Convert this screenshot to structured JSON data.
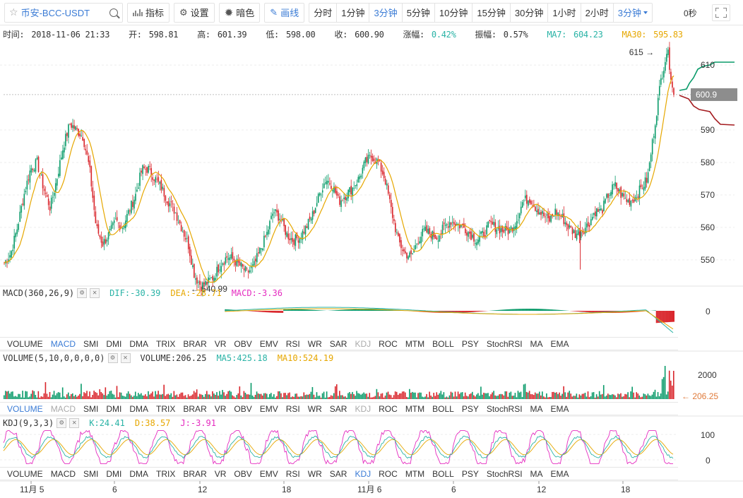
{
  "toolbar": {
    "symbol": "币安-BCC-USDT",
    "indicators_label": "指标",
    "settings_label": "设置",
    "dark_label": "暗色",
    "draw_label": "画线",
    "periods": [
      "分时",
      "1分钟",
      "3分钟",
      "5分钟",
      "10分钟",
      "15分钟",
      "30分钟",
      "1小时",
      "2小时"
    ],
    "active_period": "3分钟",
    "dropdown_label": "3分钟",
    "countdown": "0秒"
  },
  "info": {
    "time_label": "时间:",
    "time": "2018-11-06 21:33",
    "open_label": "开:",
    "open": "598.81",
    "high_label": "高:",
    "high": "601.39",
    "low_label": "低:",
    "low": "598.00",
    "close_label": "收:",
    "close": "600.90",
    "change_label": "涨幅:",
    "change": "0.42%",
    "amp_label": "振幅:",
    "amp": "0.57%",
    "ma7_label": "MA7:",
    "ma7": "604.23",
    "ma30_label": "MA30:",
    "ma30": "595.83"
  },
  "price_axis": [
    "610",
    "600.9",
    "590",
    "580",
    "570",
    "560",
    "550"
  ],
  "high_marker": "615",
  "low_marker": "540.99",
  "current_price": "600.9",
  "macd": {
    "title": "MACD(360,26,9)",
    "dif_label": "DIF:",
    "dif": "-30.39",
    "dea_label": "DEA:",
    "dea": "-28.71",
    "macd_label": "MACD:",
    "macd": "-3.36",
    "zero": "0"
  },
  "volume": {
    "title": "VOLUME(5,10,0,0,0,0)",
    "vol_label": "VOLUME:",
    "vol": "206.25",
    "ma5_label": "MA5:",
    "ma5": "425.18",
    "ma10_label": "MA10:",
    "ma10": "524.19",
    "axis": "2000",
    "current": "206.25"
  },
  "kdj": {
    "title": "KDJ(9,3,3)",
    "k_label": "K:",
    "k": "24.41",
    "d_label": "D:",
    "d": "38.57",
    "j_label": "J:",
    "j": "-3.91",
    "axis_top": "100",
    "axis_bottom": "0"
  },
  "indicator_tabs": [
    "VOLUME",
    "MACD",
    "SMI",
    "DMI",
    "DMA",
    "TRIX",
    "BRAR",
    "VR",
    "OBV",
    "EMV",
    "RSI",
    "WR",
    "SAR",
    "KDJ",
    "ROC",
    "MTM",
    "BOLL",
    "PSY",
    "StochRSI",
    "MA",
    "EMA"
  ],
  "time_axis": [
    "11月 5",
    "6",
    "12",
    "18",
    "11月 6",
    "6",
    "12",
    "18"
  ],
  "colors": {
    "up": "#0a9b6a",
    "down": "#d9262c",
    "ma7": "#2ab3a6",
    "ma30": "#e6a700",
    "accent": "#3a7bd5"
  },
  "chart_data": {
    "type": "candlestick",
    "close_path": [
      549,
      552,
      560,
      570,
      578,
      580,
      572,
      566,
      575,
      585,
      592,
      590,
      588,
      578,
      560,
      555,
      558,
      562,
      560,
      565,
      570,
      578,
      578,
      575,
      572,
      568,
      565,
      560,
      555,
      545,
      542,
      543,
      545,
      549,
      551,
      550,
      548,
      546,
      548,
      553,
      558,
      565,
      563,
      558,
      556,
      557,
      560,
      564,
      570,
      575,
      573,
      568,
      570,
      572,
      575,
      580,
      582,
      580,
      575,
      565,
      556,
      552,
      551,
      556,
      559,
      558,
      557,
      560,
      562,
      561,
      560,
      558,
      556,
      558,
      561,
      560,
      559,
      559,
      562,
      568,
      569,
      566,
      564,
      562,
      565,
      563,
      560,
      558,
      559,
      561,
      565,
      565,
      570,
      573,
      570,
      568,
      569,
      572,
      575,
      590,
      605,
      615,
      600.9
    ],
    "ylim": [
      543,
      617
    ]
  }
}
